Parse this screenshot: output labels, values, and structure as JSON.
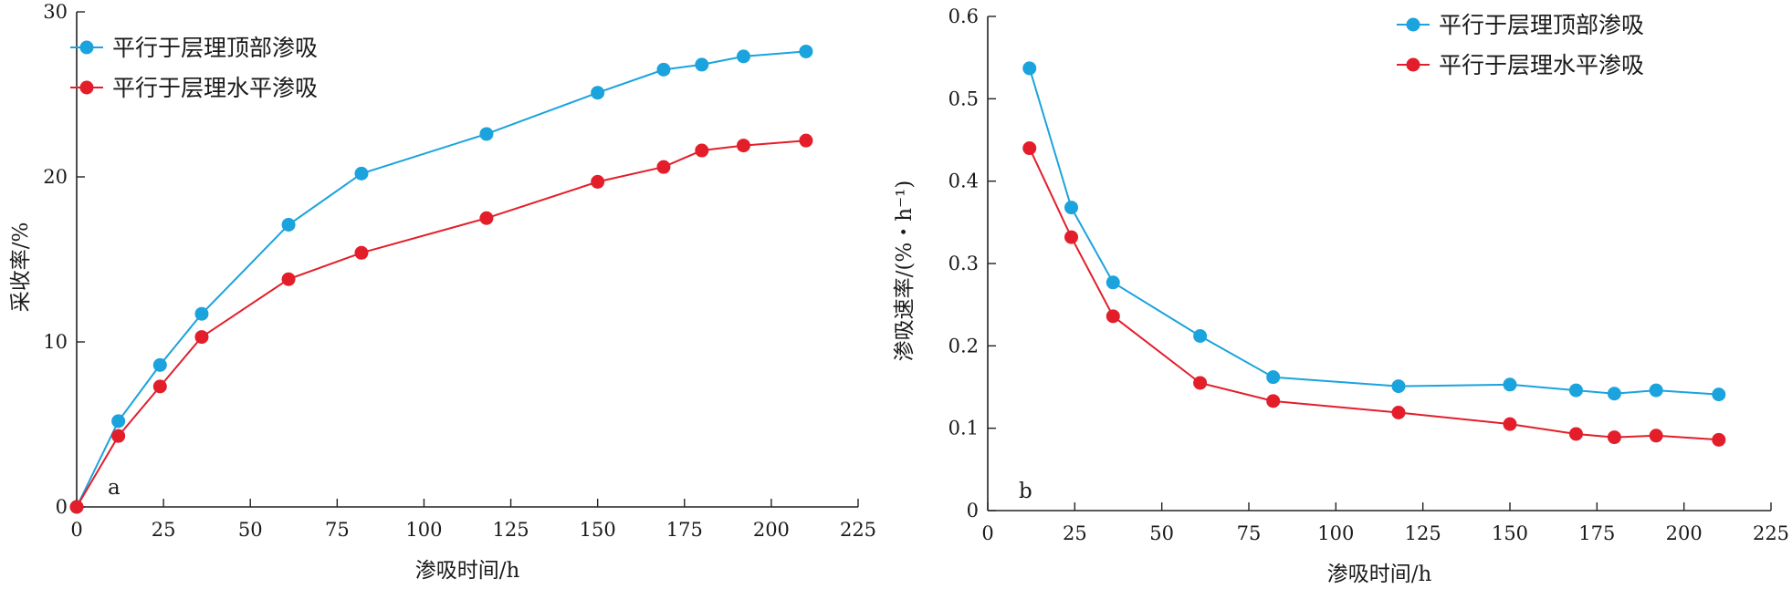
{
  "chart_data": [
    {
      "type": "line",
      "panel_label": "a",
      "xlabel": "渗吸时间/h",
      "ylabel": "采收率/%",
      "xlim": [
        0,
        225
      ],
      "ylim": [
        0,
        30
      ],
      "xticks": [
        0,
        25,
        50,
        75,
        100,
        125,
        150,
        175,
        200,
        225
      ],
      "yticks": [
        0,
        10,
        20,
        30
      ],
      "grid": false,
      "legend_position": "top-left",
      "series": [
        {
          "name": "平行于层理顶部渗吸",
          "color": "#1aa3dd",
          "x": [
            0,
            12,
            24,
            36,
            61,
            82,
            118,
            150,
            169,
            180,
            192,
            210
          ],
          "y": [
            0,
            5.2,
            8.6,
            11.7,
            17.1,
            20.2,
            22.6,
            25.1,
            26.5,
            26.8,
            27.3,
            27.6
          ]
        },
        {
          "name": "平行于层理水平渗吸",
          "color": "#e31e2a",
          "x": [
            0,
            12,
            24,
            36,
            61,
            82,
            118,
            150,
            169,
            180,
            192,
            210
          ],
          "y": [
            0,
            4.3,
            7.3,
            10.3,
            13.8,
            15.4,
            17.5,
            19.7,
            20.6,
            21.6,
            21.9,
            22.2
          ]
        }
      ]
    },
    {
      "type": "line",
      "panel_label": "b",
      "xlabel": "渗吸时间/h",
      "ylabel": "渗吸速率/(%・h⁻¹)",
      "xlim": [
        0,
        225
      ],
      "ylim": [
        0,
        0.6
      ],
      "xticks": [
        0,
        25,
        50,
        75,
        100,
        125,
        150,
        175,
        200,
        225
      ],
      "yticks": [
        0,
        0.1,
        0.2,
        0.3,
        0.4,
        0.5,
        0.6
      ],
      "grid": false,
      "legend_position": "top-right",
      "series": [
        {
          "name": "平行于层理顶部渗吸",
          "color": "#1aa3dd",
          "x": [
            12,
            24,
            36,
            61,
            82,
            118,
            150,
            169,
            180,
            192,
            210
          ],
          "y": [
            0.537,
            0.368,
            0.277,
            0.212,
            0.162,
            0.151,
            0.153,
            0.146,
            0.142,
            0.146,
            0.141
          ]
        },
        {
          "name": "平行于层理水平渗吸",
          "color": "#e31e2a",
          "x": [
            12,
            24,
            36,
            61,
            82,
            118,
            150,
            169,
            180,
            192,
            210
          ],
          "y": [
            0.44,
            0.332,
            0.236,
            0.155,
            0.133,
            0.119,
            0.105,
            0.093,
            0.089,
            0.091,
            0.086
          ]
        }
      ]
    }
  ]
}
